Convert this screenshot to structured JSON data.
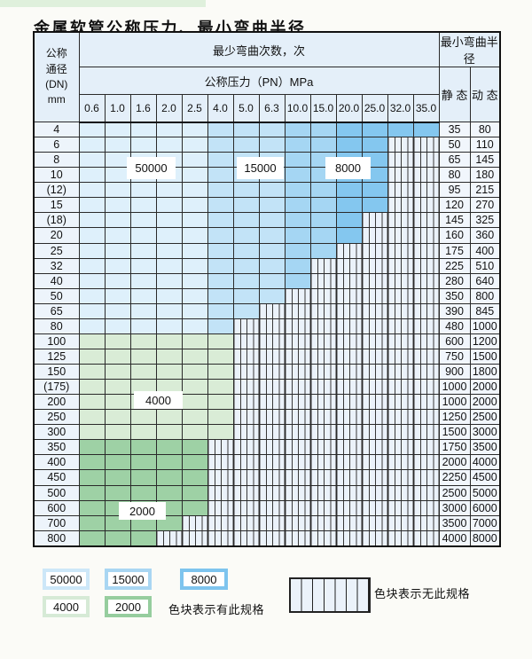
{
  "title": "金属软管公称压力、最小弯曲半径",
  "table": {
    "corner_lines": [
      "公称",
      "通径",
      "(DN)",
      "mm"
    ],
    "bend_times_header": "最少弯曲次数，次",
    "pressure_header": "公称压力（PN）MPa",
    "pressure_columns": [
      "0.6",
      "1.0",
      "1.6",
      "2.0",
      "2.5",
      "4.0",
      "5.0",
      "6.3",
      "10.0",
      "15.0",
      "20.0",
      "25.0",
      "32.0",
      "35.0"
    ],
    "radius_header": "最小弯曲半径",
    "static_header": "静 态",
    "dynamic_header": "动 态",
    "rows": [
      {
        "dn": "4",
        "colored_cols": 14,
        "zone": "blue",
        "static": "35",
        "dynamic": "80"
      },
      {
        "dn": "6",
        "colored_cols": 12,
        "zone": "blue",
        "static": "50",
        "dynamic": "110"
      },
      {
        "dn": "8",
        "colored_cols": 12,
        "zone": "blue",
        "static": "65",
        "dynamic": "145"
      },
      {
        "dn": "10",
        "colored_cols": 12,
        "zone": "blue",
        "static": "80",
        "dynamic": "180"
      },
      {
        "dn": "(12)",
        "colored_cols": 12,
        "zone": "blue",
        "static": "95",
        "dynamic": "215"
      },
      {
        "dn": "15",
        "colored_cols": 12,
        "zone": "blue",
        "static": "120",
        "dynamic": "270"
      },
      {
        "dn": "(18)",
        "colored_cols": 11,
        "zone": "blue",
        "static": "145",
        "dynamic": "325"
      },
      {
        "dn": "20",
        "colored_cols": 11,
        "zone": "blue",
        "static": "160",
        "dynamic": "360"
      },
      {
        "dn": "25",
        "colored_cols": 10,
        "zone": "blue",
        "static": "175",
        "dynamic": "400"
      },
      {
        "dn": "32",
        "colored_cols": 9,
        "zone": "blue",
        "static": "225",
        "dynamic": "510"
      },
      {
        "dn": "40",
        "colored_cols": 9,
        "zone": "blue",
        "static": "280",
        "dynamic": "640"
      },
      {
        "dn": "50",
        "colored_cols": 8,
        "zone": "blue",
        "static": "350",
        "dynamic": "800"
      },
      {
        "dn": "65",
        "colored_cols": 7,
        "zone": "blue",
        "static": "390",
        "dynamic": "845"
      },
      {
        "dn": "80",
        "colored_cols": 6,
        "zone": "blue",
        "static": "480",
        "dynamic": "1000"
      },
      {
        "dn": "100",
        "colored_cols": 6,
        "zone": "green_light",
        "static": "600",
        "dynamic": "1200"
      },
      {
        "dn": "125",
        "colored_cols": 6,
        "zone": "green_light",
        "static": "750",
        "dynamic": "1500"
      },
      {
        "dn": "150",
        "colored_cols": 6,
        "zone": "green_light",
        "static": "900",
        "dynamic": "1800"
      },
      {
        "dn": "(175)",
        "colored_cols": 6,
        "zone": "green_light",
        "static": "1000",
        "dynamic": "2000"
      },
      {
        "dn": "200",
        "colored_cols": 6,
        "zone": "green_light",
        "static": "1000",
        "dynamic": "2000"
      },
      {
        "dn": "250",
        "colored_cols": 6,
        "zone": "green_light",
        "static": "1250",
        "dynamic": "2500"
      },
      {
        "dn": "300",
        "colored_cols": 6,
        "zone": "green_light",
        "static": "1500",
        "dynamic": "3000"
      },
      {
        "dn": "350",
        "colored_cols": 5,
        "zone": "green_mid",
        "static": "1750",
        "dynamic": "3500"
      },
      {
        "dn": "400",
        "colored_cols": 5,
        "zone": "green_mid",
        "static": "2000",
        "dynamic": "4000"
      },
      {
        "dn": "450",
        "colored_cols": 5,
        "zone": "green_mid",
        "static": "2250",
        "dynamic": "4500"
      },
      {
        "dn": "500",
        "colored_cols": 5,
        "zone": "green_mid",
        "static": "2500",
        "dynamic": "5000"
      },
      {
        "dn": "600",
        "colored_cols": 5,
        "zone": "green_mid",
        "static": "3000",
        "dynamic": "6000"
      },
      {
        "dn": "700",
        "colored_cols": 4,
        "zone": "green_mid",
        "static": "3500",
        "dynamic": "7000"
      },
      {
        "dn": "800",
        "colored_cols": 3,
        "zone": "green_mid",
        "static": "4000",
        "dynamic": "8000"
      }
    ]
  },
  "zone_labels": [
    "50000",
    "15000",
    "8000",
    "4000",
    "2000"
  ],
  "legend": {
    "swatches": [
      {
        "label": "50000",
        "color": "#cde7f8"
      },
      {
        "label": "15000",
        "color": "#a9d6f2"
      },
      {
        "label": "8000",
        "color": "#7ec4ee"
      },
      {
        "label": "4000",
        "color": "#d6ead6"
      },
      {
        "label": "2000",
        "color": "#96cd9e"
      }
    ],
    "has_spec_text": "色块表示有此规格",
    "no_spec_text": "色块表示无此规格"
  },
  "colors": {
    "b1": "#def0fb",
    "b2": "#c2e3f7",
    "b3": "#a5d6f3",
    "b4": "#84c7ef",
    "green_light": "#d9ecd6",
    "green_mid": "#9ed1a5",
    "hatch_bg": "#ebf2fa",
    "hatch_line": "#383838",
    "header_bg": "#e4eff9",
    "dn_bg": "#edf4fb",
    "radius_bg": "#f1f6fc",
    "page_bg": "#fbfbf7",
    "mint": "#dff0dc"
  },
  "chart_data": {
    "type": "table",
    "title": "金属软管公称压力、最小弯曲半径",
    "columns_pn_mpa": [
      0.6,
      1.0,
      1.6,
      2.0,
      2.5,
      4.0,
      5.0,
      6.3,
      10.0,
      15.0,
      20.0,
      25.0,
      32.0,
      35.0
    ],
    "bend_cycle_zones": {
      "50000": "PN 0.6–2.5 (blue region)",
      "15000": "PN 4.0–6.3 (blue region)",
      "8000": "PN ≥10.0 (blue region)",
      "4000": "DN 100–300 (green region)",
      "2000": "DN 350–800 (green region)"
    },
    "rows": [
      {
        "dn": "4",
        "spec_through_pn": 35.0,
        "static_radius": 35,
        "dynamic_radius": 80
      },
      {
        "dn": "6",
        "spec_through_pn": 25.0,
        "static_radius": 50,
        "dynamic_radius": 110
      },
      {
        "dn": "8",
        "spec_through_pn": 25.0,
        "static_radius": 65,
        "dynamic_radius": 145
      },
      {
        "dn": "10",
        "spec_through_pn": 25.0,
        "static_radius": 80,
        "dynamic_radius": 180
      },
      {
        "dn": "(12)",
        "spec_through_pn": 25.0,
        "static_radius": 95,
        "dynamic_radius": 215
      },
      {
        "dn": "15",
        "spec_through_pn": 25.0,
        "static_radius": 120,
        "dynamic_radius": 270
      },
      {
        "dn": "(18)",
        "spec_through_pn": 20.0,
        "static_radius": 145,
        "dynamic_radius": 325
      },
      {
        "dn": "20",
        "spec_through_pn": 20.0,
        "static_radius": 160,
        "dynamic_radius": 360
      },
      {
        "dn": "25",
        "spec_through_pn": 15.0,
        "static_radius": 175,
        "dynamic_radius": 400
      },
      {
        "dn": "32",
        "spec_through_pn": 10.0,
        "static_radius": 225,
        "dynamic_radius": 510
      },
      {
        "dn": "40",
        "spec_through_pn": 10.0,
        "static_radius": 280,
        "dynamic_radius": 640
      },
      {
        "dn": "50",
        "spec_through_pn": 6.3,
        "static_radius": 350,
        "dynamic_radius": 800
      },
      {
        "dn": "65",
        "spec_through_pn": 5.0,
        "static_radius": 390,
        "dynamic_radius": 845
      },
      {
        "dn": "80",
        "spec_through_pn": 4.0,
        "static_radius": 480,
        "dynamic_radius": 1000
      },
      {
        "dn": "100",
        "spec_through_pn": 4.0,
        "static_radius": 600,
        "dynamic_radius": 1200
      },
      {
        "dn": "125",
        "spec_through_pn": 4.0,
        "static_radius": 750,
        "dynamic_radius": 1500
      },
      {
        "dn": "150",
        "spec_through_pn": 4.0,
        "static_radius": 900,
        "dynamic_radius": 1800
      },
      {
        "dn": "(175)",
        "spec_through_pn": 4.0,
        "static_radius": 1000,
        "dynamic_radius": 2000
      },
      {
        "dn": "200",
        "spec_through_pn": 4.0,
        "static_radius": 1000,
        "dynamic_radius": 2000
      },
      {
        "dn": "250",
        "spec_through_pn": 4.0,
        "static_radius": 1250,
        "dynamic_radius": 2500
      },
      {
        "dn": "300",
        "spec_through_pn": 4.0,
        "static_radius": 1500,
        "dynamic_radius": 3000
      },
      {
        "dn": "350",
        "spec_through_pn": 2.5,
        "static_radius": 1750,
        "dynamic_radius": 3500
      },
      {
        "dn": "400",
        "spec_through_pn": 2.5,
        "static_radius": 2000,
        "dynamic_radius": 4000
      },
      {
        "dn": "450",
        "spec_through_pn": 2.5,
        "static_radius": 2250,
        "dynamic_radius": 4500
      },
      {
        "dn": "500",
        "spec_through_pn": 2.5,
        "static_radius": 2500,
        "dynamic_radius": 5000
      },
      {
        "dn": "600",
        "spec_through_pn": 2.5,
        "static_radius": 3000,
        "dynamic_radius": 6000
      },
      {
        "dn": "700",
        "spec_through_pn": 2.0,
        "static_radius": 3500,
        "dynamic_radius": 7000
      },
      {
        "dn": "800",
        "spec_through_pn": 1.6,
        "static_radius": 4000,
        "dynamic_radius": 8000
      }
    ]
  }
}
